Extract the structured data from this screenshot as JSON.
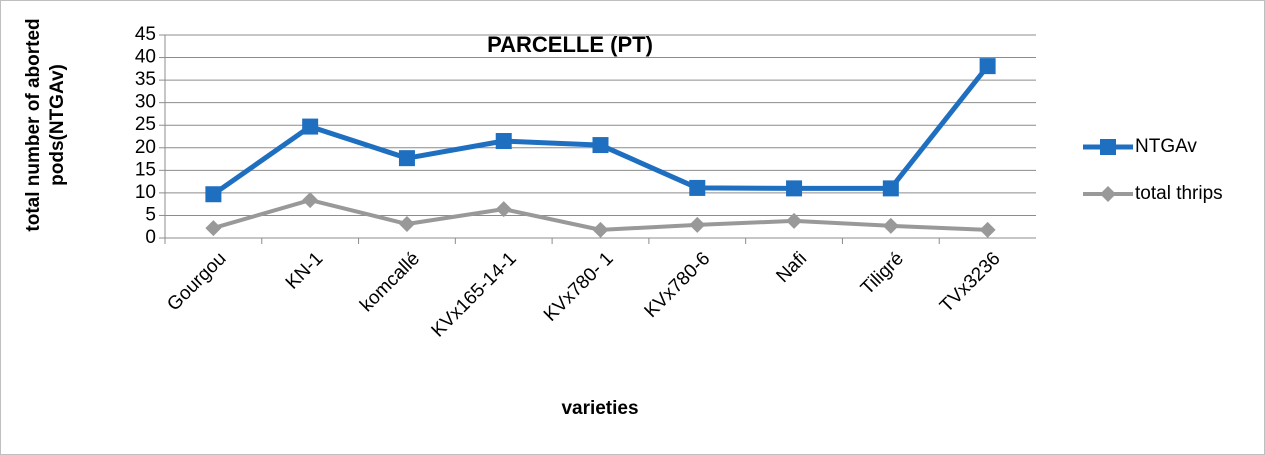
{
  "chart_data": {
    "type": "line",
    "title": "PARCELLE (PT)",
    "x_label": "varieties",
    "y_label": [
      "total number of aborted",
      "pods(NTGAv)"
    ],
    "categories": [
      "Gourgou",
      "KN-1",
      "komcallé",
      "KVx165-14-1",
      "KVx780- 1",
      "KVx780-6",
      "Nafi",
      "Tiligré",
      "TVx3236"
    ],
    "series": [
      {
        "name": "NTGAv",
        "color": "#1f6fc0",
        "marker": "square",
        "values": [
          9.7,
          24.7,
          17.7,
          21.5,
          20.6,
          11.1,
          11,
          11,
          38.1
        ]
      },
      {
        "name": "total thrips",
        "color": "#999999",
        "marker": "diamond",
        "values": [
          2.2,
          8.4,
          3.1,
          6.4,
          1.8,
          2.9,
          3.8,
          2.7,
          1.8
        ]
      }
    ],
    "ylim": [
      0,
      45
    ],
    "yticks": [
      0,
      5,
      10,
      15,
      20,
      25,
      30,
      35,
      40,
      45
    ],
    "grid": true,
    "legend": "right"
  }
}
